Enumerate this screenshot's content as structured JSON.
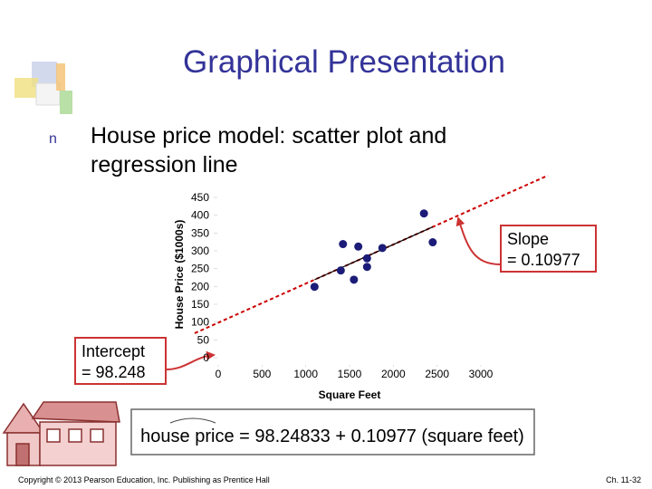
{
  "slide": {
    "title": "Graphical Presentation",
    "bullet": "n",
    "text_lines": [
      "House price model:  scatter plot and",
      "regression line"
    ],
    "equation": "house price = 98.24833 + 0.10977 (square feet)",
    "footer_left": "Copyright © 2013 Pearson Education, Inc. Publishing as Prentice Hall",
    "footer_right": "Ch. 11-32"
  },
  "chart_data": {
    "type": "scatter",
    "x_label": "Square Feet",
    "y_label": "House Price ($1000s)",
    "x": [
      1400,
      1600,
      1700,
      1875,
      1100,
      1550,
      2350,
      2450,
      1425,
      1700
    ],
    "series": [
      {
        "color": "#1c1c78",
        "values": [
          245,
          312,
          279,
          308,
          199,
          219,
          405,
          324,
          319,
          255
        ]
      }
    ],
    "xlim": [
      0,
      3000
    ],
    "ylim": [
      0,
      450
    ],
    "xticks": [
      0,
      500,
      1000,
      1500,
      2000,
      2500,
      3000
    ],
    "yticks": [
      0,
      50,
      100,
      150,
      200,
      250,
      300,
      350,
      400,
      450
    ],
    "regression": {
      "intercept": 98.248,
      "slope": 0.10977,
      "color": "#000000",
      "extension_color": "#cc0000"
    },
    "annotations": [
      {
        "lines": [
          "Slope",
          "= 0.10977"
        ]
      },
      {
        "lines": [
          "Intercept",
          "= 98.248"
        ]
      }
    ]
  }
}
